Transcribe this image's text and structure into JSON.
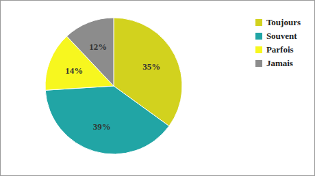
{
  "chart_data": {
    "type": "pie",
    "categories": [
      "Toujours",
      "Souvent",
      "Parfois",
      "Jamais"
    ],
    "values": [
      35,
      39,
      14,
      12
    ],
    "value_labels": [
      "35%",
      "39%",
      "14%",
      "12%"
    ],
    "colors": [
      "#d2d21e",
      "#21a5a5",
      "#f7f71f",
      "#8c8c8c"
    ],
    "data_labels": true,
    "legend": "top-right"
  }
}
